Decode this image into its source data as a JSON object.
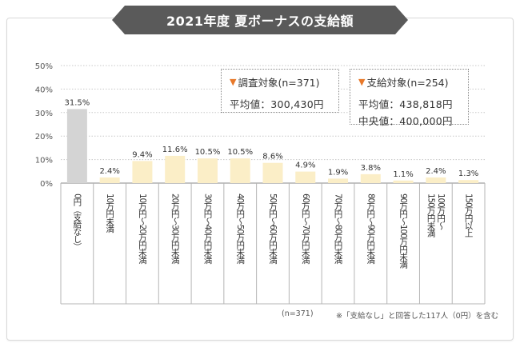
{
  "title": "2021年度 夏ボーナスの支給額",
  "chart_data": {
    "type": "bar",
    "categories": [
      "0円（支給なし）",
      "10万円未満",
      "10万円〜20万円未満",
      "20万円〜30万円未満",
      "30万円〜40万円未満",
      "40万円〜50万円未満",
      "50万円〜60万円未満",
      "60万円〜70万円未満",
      "70万円〜80万円未満",
      "80万円〜90万円未満",
      "90万円〜100万円未満",
      "100万円〜150万円未満",
      "150万円以上"
    ],
    "category_label_lines": [
      [
        "0円（支給なし）"
      ],
      [
        "10万円未満"
      ],
      [
        "10万円〜20万円未満"
      ],
      [
        "20万円〜30万円未満"
      ],
      [
        "30万円〜40万円未満"
      ],
      [
        "40万円〜50万円未満"
      ],
      [
        "50万円〜60万円未満"
      ],
      [
        "60万円〜70万円未満"
      ],
      [
        "70万円〜80万円未満"
      ],
      [
        "80万円〜90万円未満"
      ],
      [
        "90万円〜100万円未満"
      ],
      [
        "100万円〜",
        "150万円未満"
      ],
      [
        "150万円以上"
      ]
    ],
    "values": [
      31.5,
      2.4,
      9.4,
      11.6,
      10.5,
      10.5,
      8.6,
      4.9,
      1.9,
      3.8,
      1.1,
      2.4,
      1.3
    ],
    "value_labels": [
      "31.5%",
      "2.4%",
      "9.4%",
      "11.6%",
      "10.5%",
      "10.5%",
      "8.6%",
      "4.9%",
      "1.9%",
      "3.8%",
      "1.1%",
      "2.4%",
      "1.3%"
    ],
    "ylim": [
      0,
      50
    ],
    "yticks": [
      "0%",
      "10%",
      "20%",
      "30%",
      "40%",
      "50%"
    ],
    "ytick_values": [
      0,
      10,
      20,
      30,
      40,
      50
    ],
    "colors": {
      "first": "#d4d4d4",
      "rest": "#fbeec7",
      "grid": "#c8c8c8",
      "axis": "#888888"
    }
  },
  "legend": {
    "survey": {
      "head": "調査対象(n=371)",
      "lines": [
        "平均値：300,430円"
      ]
    },
    "paid": {
      "head": "支給対象(n=254)",
      "lines": [
        "平均値：438,818円",
        "中央値：400,000円"
      ]
    }
  },
  "footnote_n": "(n=371)",
  "footnote": "※「支給なし」と回答した117人（0円）を含む"
}
